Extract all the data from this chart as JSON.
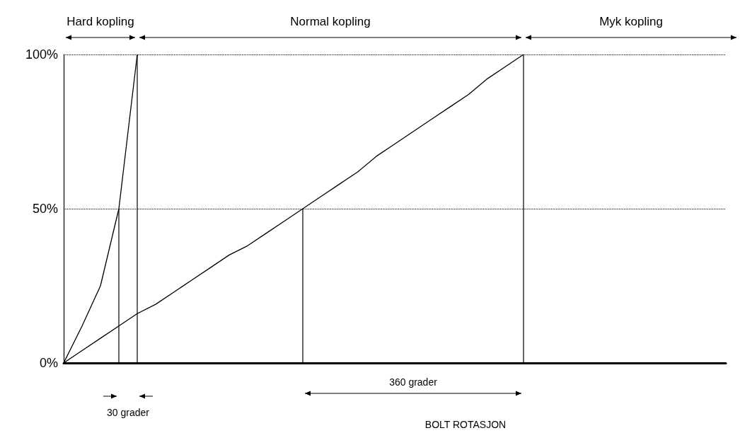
{
  "chart_data": {
    "type": "line",
    "xlabel": "BOLT ROTASJON",
    "ylim": [
      0,
      100
    ],
    "categories": [
      null,
      null,
      null,
      null,
      null,
      null,
      null,
      null,
      null,
      null,
      null,
      null,
      null,
      null,
      null,
      null,
      null,
      null,
      null,
      null,
      null,
      null,
      null,
      null,
      null,
      null,
      null,
      null,
      null,
      null,
      null,
      null,
      null,
      null,
      null,
      null,
      null
    ],
    "yticks": [
      {
        "value": 0,
        "label": "0%"
      },
      {
        "value": 50,
        "label": "50%"
      },
      {
        "value": 100,
        "label": "100%"
      }
    ],
    "tick_labels": "y",
    "grid": false,
    "marker": "none",
    "line_style": "solid",
    "series": [
      {
        "color": "#000000",
        "values": [
          0,
          12,
          25,
          50,
          100,
          null,
          null,
          null,
          null,
          null,
          null,
          null,
          null,
          null,
          null,
          null,
          null,
          null,
          null,
          null,
          null,
          null,
          null,
          null,
          null,
          null,
          null,
          null,
          null,
          null,
          null,
          null,
          null,
          null,
          null,
          null,
          null
        ]
      },
      {
        "color": "#000000",
        "values": [
          0,
          4,
          8,
          12,
          16,
          19,
          23,
          27,
          31,
          35,
          38,
          42,
          46,
          50,
          54,
          58,
          62,
          67,
          71,
          75,
          79,
          83,
          87,
          92,
          96,
          100,
          null,
          null,
          null,
          null,
          null,
          null,
          null,
          null,
          null,
          null,
          null
        ]
      }
    ],
    "ref_lines": [
      {
        "axis": "y",
        "value": 50,
        "line_style": "dotted"
      },
      {
        "axis": "y",
        "value": 100,
        "line_style": "dotted"
      }
    ],
    "annotations": [
      "Hard kopling",
      "Normal kopling",
      "Myk kopling",
      "30 grader",
      "360 grader"
    ]
  }
}
